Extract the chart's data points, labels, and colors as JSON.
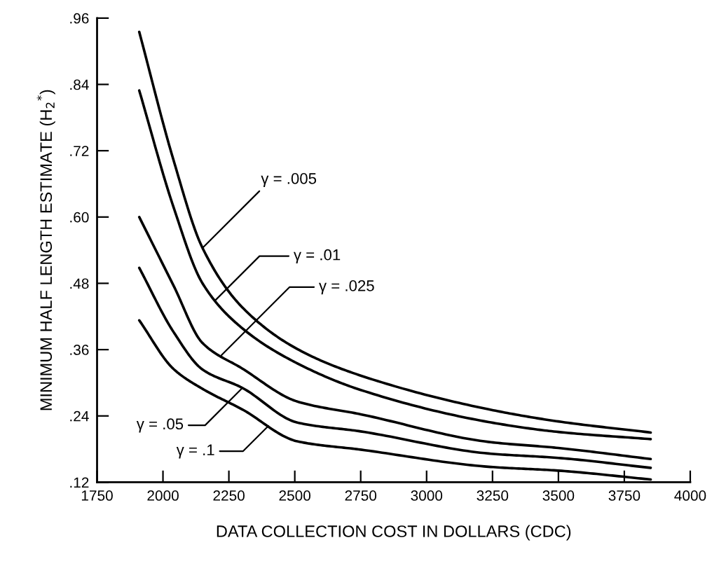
{
  "chart_data": {
    "type": "line",
    "xlabel": "DATA COLLECTION COST IN DOLLARS (CDC)",
    "ylabel": "MINIMUM HALF LENGTH ESTIMATE (H$_{2}$$^{*}$)",
    "x": [
      1910,
      2040,
      2150,
      2300,
      2510,
      2750,
      3235,
      3500,
      3850
    ],
    "series": [
      {
        "color": "#000000",
        "values": [
          0.935,
          0.703,
          0.544,
          0.437,
          0.361,
          0.313,
          0.252,
          0.23,
          0.21
        ]
      },
      {
        "color": "#000000",
        "values": [
          0.829,
          0.618,
          0.48,
          0.399,
          0.335,
          0.287,
          0.229,
          0.211,
          0.198
        ]
      },
      {
        "color": "#000000",
        "values": [
          0.6,
          0.476,
          0.372,
          0.326,
          0.266,
          0.243,
          0.193,
          0.182,
          0.162
        ]
      },
      {
        "color": "#000000",
        "values": [
          0.508,
          0.392,
          0.324,
          0.291,
          0.228,
          0.212,
          0.172,
          0.164,
          0.146
        ]
      },
      {
        "color": "#000000",
        "values": [
          0.413,
          0.325,
          0.289,
          0.252,
          0.194,
          0.179,
          0.148,
          0.141,
          0.125
        ]
      }
    ],
    "annotations": [
      {
        "text": "γ = .005",
        "x": 2150,
        "y": 0.544
      },
      {
        "text": "γ = .01",
        "x": 2200,
        "y": 0.45
      },
      {
        "text": "γ = .025",
        "x": 2222,
        "y": 0.35
      },
      {
        "text": "γ = .05",
        "x": 2300,
        "y": 0.29
      },
      {
        "text": "γ = .1",
        "x": 2400,
        "y": 0.222
      }
    ],
    "xlim": [
      1750,
      4000
    ],
    "xticks": [
      1750,
      2000,
      2250,
      2500,
      2750,
      3000,
      3250,
      3500,
      3750,
      4000
    ],
    "ylim": [
      0.12,
      0.96
    ],
    "yticks": [
      {
        "value": 0.12,
        "label": ".12"
      },
      {
        "value": 0.24,
        "label": ".24"
      },
      {
        "value": 0.36,
        "label": ".36"
      },
      {
        "value": 0.48,
        "label": ".48"
      },
      {
        "value": 0.6,
        "label": ".60"
      },
      {
        "value": 0.72,
        "label": ".72"
      },
      {
        "value": 0.84,
        "label": ".84"
      },
      {
        "value": 0.96,
        "label": ".96"
      }
    ],
    "grid": false,
    "marker": "none",
    "line_style": "solid"
  }
}
